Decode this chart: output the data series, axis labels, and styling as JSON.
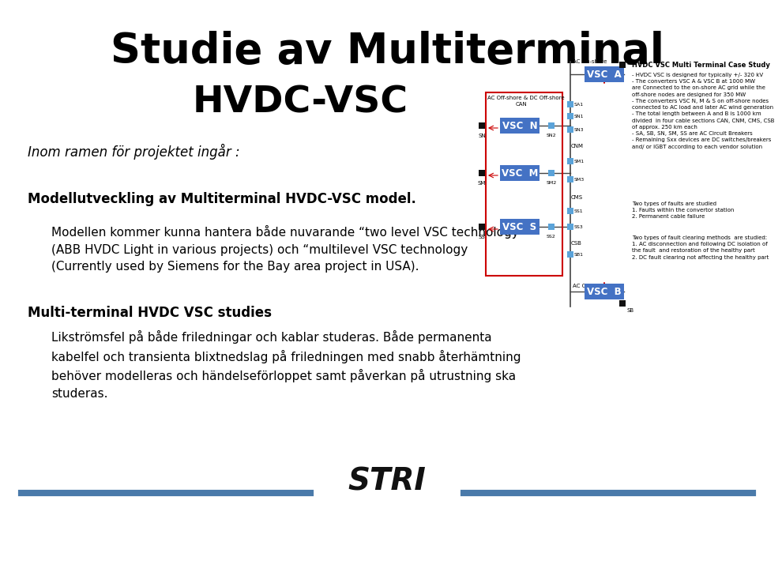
{
  "title_line1": "Studie av Multiterminal",
  "title_line2": "HVDC-VSC",
  "subtitle_italic": "Inom ramen för projektet ingår :",
  "body_bold1": "Modellutveckling av Multiterminal HVDC-VSC model.",
  "body_text1": "Modellen kommer kunna hantera både nuvarande “two level VSC technology”\n(ABB HVDC Light in various projects) och “multilevel VSC technology\n(Currently used by Siemens for the Bay area project in USA).",
  "body_bold2": "Multi-terminal HVDC VSC studies",
  "body_text2": "Likströmsfel på både friledningar och kablar studeras. Både permanenta\nkabelfel och transienta blixtnedslag på friledningen med snabb återhämtning\nbehöver modelleras och händelseförloppet samt påverkan på utrustning ska\nstuderas.",
  "diagram_title": "HVDC VSC Multi Terminal Case Study",
  "diagram_notes": "- HVDC VSC is designed for typically +/- 320 kV\n- The converters VSC A & VSC B at 1000 MW\nare Connected to the on-shore AC grid while the\noff-shore nodes are designed for 350 MW\n- The converters VSC N, M & S on off-shore nodes\nconnected to AC load and later AC wind generation\n- The total length between A and B is 1000 km\ndivided  in four cable sections CAN, CNM, CMS, CSB\nof approx. 250 km each\n- SA, SB, SN, SM, SS are AC Circuit Breakers\n- Remaining Sxx devices are DC switches/breakers\nand/ or IGBT according to each vendor solution",
  "diagram_faults": "Two types of faults are studied\n1. Faults within the convertor station\n2. Permanent cable failure",
  "diagram_clearing": "Two types of fault clearing methods  are studied:\n1. AC disconnection and following DC isolation of\nthe fault  and restoration of the healthy part\n2. DC fault clearing not affecting the healthy part",
  "bg_color": "#ffffff",
  "title_color": "#000000",
  "text_color": "#000000",
  "vsc_box_color": "#4472c4",
  "vsc_text_color": "#ffffff",
  "small_box_color": "#5ba3d9",
  "black_sq_color": "#111111",
  "red_border_color": "#cc0000",
  "footer_line_color": "#4a7aaa",
  "stri_color": "#111111"
}
